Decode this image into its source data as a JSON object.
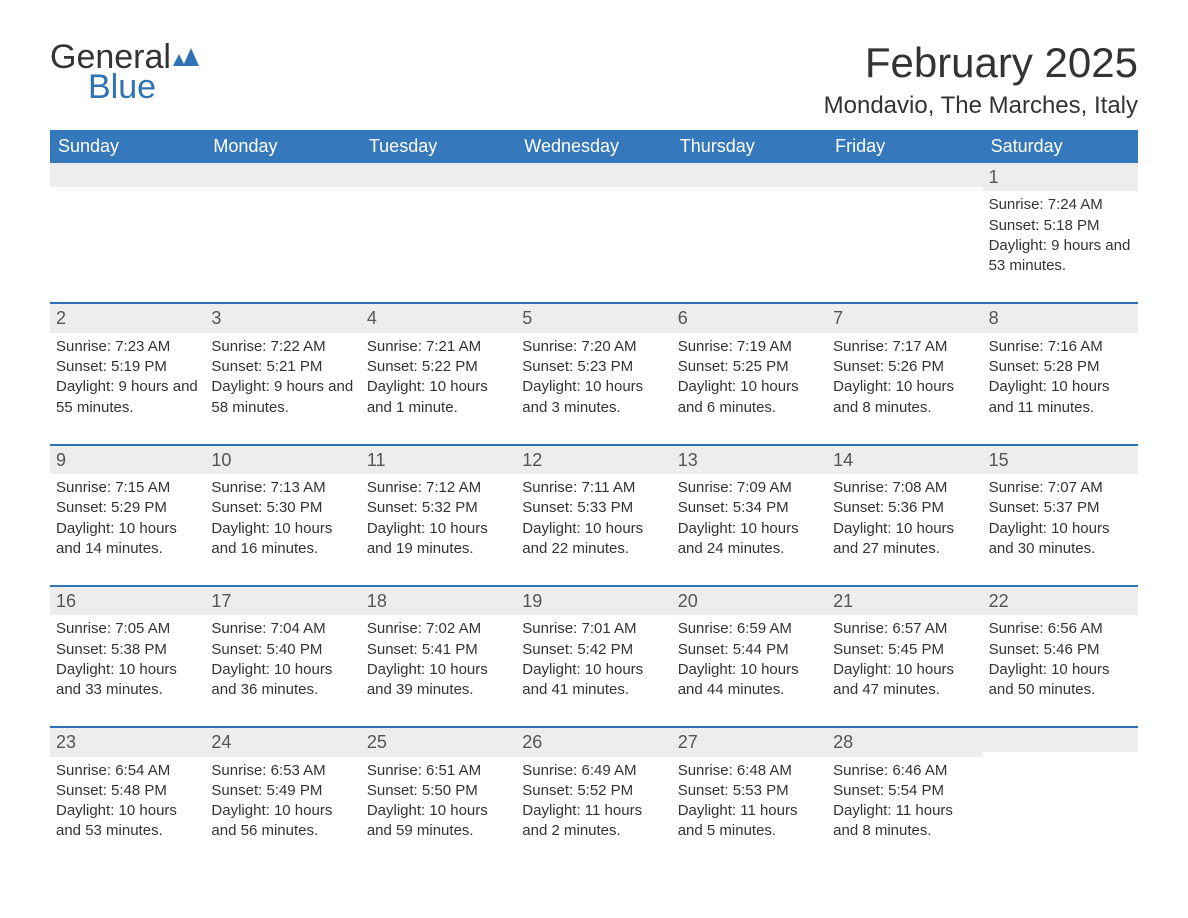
{
  "logo": {
    "word1": "General",
    "word2": "Blue",
    "flag_color": "#2f73b5"
  },
  "title": "February 2025",
  "subtitle": "Mondavio, The Marches, Italy",
  "colors": {
    "header_bg": "#3578bc",
    "header_text": "#ffffff",
    "week_border": "#2f73b5",
    "daynum_bg": "#ededed",
    "body_text": "#333333",
    "background": "#ffffff"
  },
  "day_headers": [
    "Sunday",
    "Monday",
    "Tuesday",
    "Wednesday",
    "Thursday",
    "Friday",
    "Saturday"
  ],
  "weeks": [
    [
      {
        "day": "",
        "sunrise": "",
        "sunset": "",
        "daylight": ""
      },
      {
        "day": "",
        "sunrise": "",
        "sunset": "",
        "daylight": ""
      },
      {
        "day": "",
        "sunrise": "",
        "sunset": "",
        "daylight": ""
      },
      {
        "day": "",
        "sunrise": "",
        "sunset": "",
        "daylight": ""
      },
      {
        "day": "",
        "sunrise": "",
        "sunset": "",
        "daylight": ""
      },
      {
        "day": "",
        "sunrise": "",
        "sunset": "",
        "daylight": ""
      },
      {
        "day": "1",
        "sunrise": "Sunrise: 7:24 AM",
        "sunset": "Sunset: 5:18 PM",
        "daylight": "Daylight: 9 hours and 53 minutes."
      }
    ],
    [
      {
        "day": "2",
        "sunrise": "Sunrise: 7:23 AM",
        "sunset": "Sunset: 5:19 PM",
        "daylight": "Daylight: 9 hours and 55 minutes."
      },
      {
        "day": "3",
        "sunrise": "Sunrise: 7:22 AM",
        "sunset": "Sunset: 5:21 PM",
        "daylight": "Daylight: 9 hours and 58 minutes."
      },
      {
        "day": "4",
        "sunrise": "Sunrise: 7:21 AM",
        "sunset": "Sunset: 5:22 PM",
        "daylight": "Daylight: 10 hours and 1 minute."
      },
      {
        "day": "5",
        "sunrise": "Sunrise: 7:20 AM",
        "sunset": "Sunset: 5:23 PM",
        "daylight": "Daylight: 10 hours and 3 minutes."
      },
      {
        "day": "6",
        "sunrise": "Sunrise: 7:19 AM",
        "sunset": "Sunset: 5:25 PM",
        "daylight": "Daylight: 10 hours and 6 minutes."
      },
      {
        "day": "7",
        "sunrise": "Sunrise: 7:17 AM",
        "sunset": "Sunset: 5:26 PM",
        "daylight": "Daylight: 10 hours and 8 minutes."
      },
      {
        "day": "8",
        "sunrise": "Sunrise: 7:16 AM",
        "sunset": "Sunset: 5:28 PM",
        "daylight": "Daylight: 10 hours and 11 minutes."
      }
    ],
    [
      {
        "day": "9",
        "sunrise": "Sunrise: 7:15 AM",
        "sunset": "Sunset: 5:29 PM",
        "daylight": "Daylight: 10 hours and 14 minutes."
      },
      {
        "day": "10",
        "sunrise": "Sunrise: 7:13 AM",
        "sunset": "Sunset: 5:30 PM",
        "daylight": "Daylight: 10 hours and 16 minutes."
      },
      {
        "day": "11",
        "sunrise": "Sunrise: 7:12 AM",
        "sunset": "Sunset: 5:32 PM",
        "daylight": "Daylight: 10 hours and 19 minutes."
      },
      {
        "day": "12",
        "sunrise": "Sunrise: 7:11 AM",
        "sunset": "Sunset: 5:33 PM",
        "daylight": "Daylight: 10 hours and 22 minutes."
      },
      {
        "day": "13",
        "sunrise": "Sunrise: 7:09 AM",
        "sunset": "Sunset: 5:34 PM",
        "daylight": "Daylight: 10 hours and 24 minutes."
      },
      {
        "day": "14",
        "sunrise": "Sunrise: 7:08 AM",
        "sunset": "Sunset: 5:36 PM",
        "daylight": "Daylight: 10 hours and 27 minutes."
      },
      {
        "day": "15",
        "sunrise": "Sunrise: 7:07 AM",
        "sunset": "Sunset: 5:37 PM",
        "daylight": "Daylight: 10 hours and 30 minutes."
      }
    ],
    [
      {
        "day": "16",
        "sunrise": "Sunrise: 7:05 AM",
        "sunset": "Sunset: 5:38 PM",
        "daylight": "Daylight: 10 hours and 33 minutes."
      },
      {
        "day": "17",
        "sunrise": "Sunrise: 7:04 AM",
        "sunset": "Sunset: 5:40 PM",
        "daylight": "Daylight: 10 hours and 36 minutes."
      },
      {
        "day": "18",
        "sunrise": "Sunrise: 7:02 AM",
        "sunset": "Sunset: 5:41 PM",
        "daylight": "Daylight: 10 hours and 39 minutes."
      },
      {
        "day": "19",
        "sunrise": "Sunrise: 7:01 AM",
        "sunset": "Sunset: 5:42 PM",
        "daylight": "Daylight: 10 hours and 41 minutes."
      },
      {
        "day": "20",
        "sunrise": "Sunrise: 6:59 AM",
        "sunset": "Sunset: 5:44 PM",
        "daylight": "Daylight: 10 hours and 44 minutes."
      },
      {
        "day": "21",
        "sunrise": "Sunrise: 6:57 AM",
        "sunset": "Sunset: 5:45 PM",
        "daylight": "Daylight: 10 hours and 47 minutes."
      },
      {
        "day": "22",
        "sunrise": "Sunrise: 6:56 AM",
        "sunset": "Sunset: 5:46 PM",
        "daylight": "Daylight: 10 hours and 50 minutes."
      }
    ],
    [
      {
        "day": "23",
        "sunrise": "Sunrise: 6:54 AM",
        "sunset": "Sunset: 5:48 PM",
        "daylight": "Daylight: 10 hours and 53 minutes."
      },
      {
        "day": "24",
        "sunrise": "Sunrise: 6:53 AM",
        "sunset": "Sunset: 5:49 PM",
        "daylight": "Daylight: 10 hours and 56 minutes."
      },
      {
        "day": "25",
        "sunrise": "Sunrise: 6:51 AM",
        "sunset": "Sunset: 5:50 PM",
        "daylight": "Daylight: 10 hours and 59 minutes."
      },
      {
        "day": "26",
        "sunrise": "Sunrise: 6:49 AM",
        "sunset": "Sunset: 5:52 PM",
        "daylight": "Daylight: 11 hours and 2 minutes."
      },
      {
        "day": "27",
        "sunrise": "Sunrise: 6:48 AM",
        "sunset": "Sunset: 5:53 PM",
        "daylight": "Daylight: 11 hours and 5 minutes."
      },
      {
        "day": "28",
        "sunrise": "Sunrise: 6:46 AM",
        "sunset": "Sunset: 5:54 PM",
        "daylight": "Daylight: 11 hours and 8 minutes."
      },
      {
        "day": "",
        "sunrise": "",
        "sunset": "",
        "daylight": ""
      }
    ]
  ]
}
